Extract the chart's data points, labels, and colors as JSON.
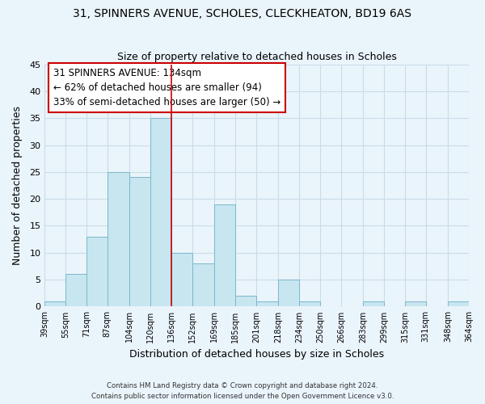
{
  "title1": "31, SPINNERS AVENUE, SCHOLES, CLECKHEATON, BD19 6AS",
  "title2": "Size of property relative to detached houses in Scholes",
  "xlabel": "Distribution of detached houses by size in Scholes",
  "ylabel": "Number of detached properties",
  "bar_color": "#c8e6f0",
  "bar_edge_color": "#7ab8cc",
  "grid_color": "#c8dde8",
  "bg_color": "#eaf4fb",
  "bin_edges": [
    39,
    55,
    71,
    87,
    104,
    120,
    136,
    152,
    169,
    185,
    201,
    218,
    234,
    250,
    266,
    283,
    299,
    315,
    331,
    348,
    364
  ],
  "bin_labels": [
    "39sqm",
    "55sqm",
    "71sqm",
    "87sqm",
    "104sqm",
    "120sqm",
    "136sqm",
    "152sqm",
    "169sqm",
    "185sqm",
    "201sqm",
    "218sqm",
    "234sqm",
    "250sqm",
    "266sqm",
    "283sqm",
    "299sqm",
    "315sqm",
    "331sqm",
    "348sqm",
    "364sqm"
  ],
  "counts": [
    1,
    6,
    13,
    25,
    24,
    35,
    10,
    8,
    19,
    2,
    1,
    5,
    1,
    0,
    0,
    1,
    0,
    1,
    0,
    1
  ],
  "property_line_x": 136,
  "property_line_color": "#cc0000",
  "ylim": [
    0,
    45
  ],
  "yticks": [
    0,
    5,
    10,
    15,
    20,
    25,
    30,
    35,
    40,
    45
  ],
  "annotation_title": "31 SPINNERS AVENUE: 134sqm",
  "annotation_line1": "← 62% of detached houses are smaller (94)",
  "annotation_line2": "33% of semi-detached houses are larger (50) →",
  "footer1": "Contains HM Land Registry data © Crown copyright and database right 2024.",
  "footer2": "Contains public sector information licensed under the Open Government Licence v3.0."
}
